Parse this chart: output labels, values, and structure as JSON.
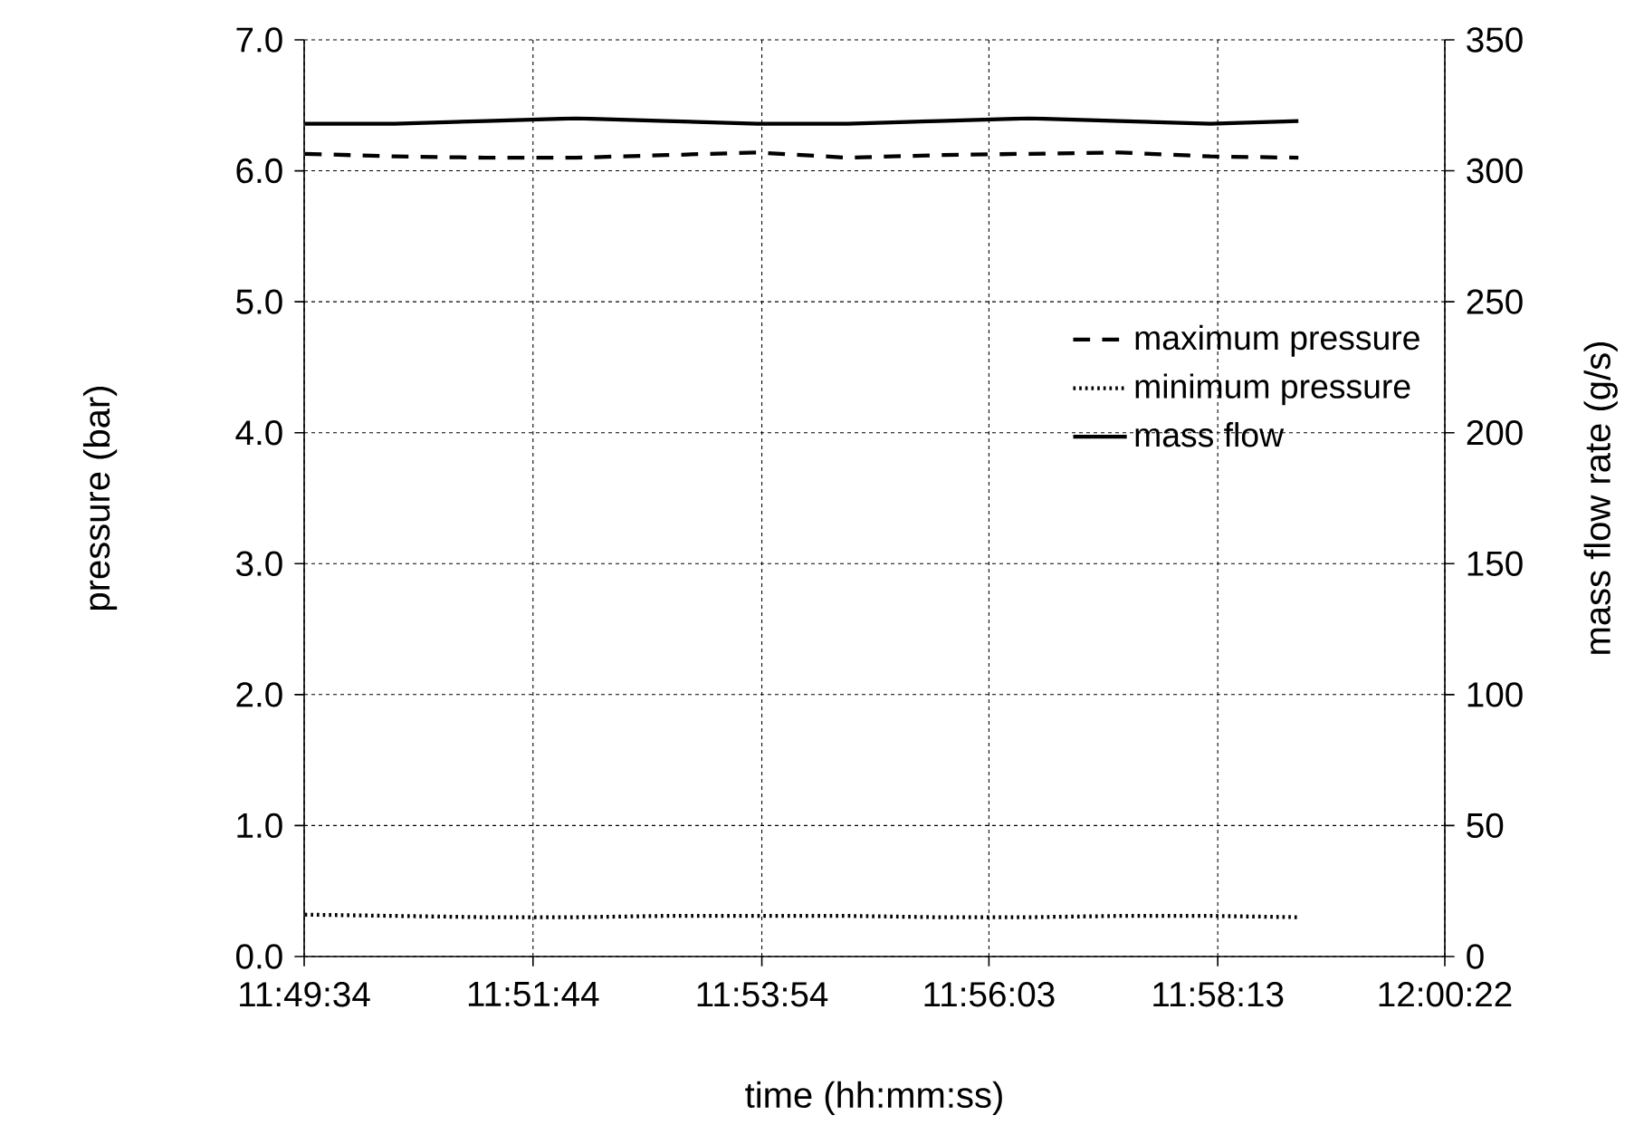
{
  "chart_data": {
    "type": "line",
    "xlabel": "time (hh:mm:ss)",
    "ylabel": "pressure (bar)",
    "y2label": "mass flow rate (g/s)",
    "xlim": [
      11.826111,
      12.006111
    ],
    "xticks": [
      {
        "value": 11.826111,
        "label": "11:49:34"
      },
      {
        "value": 11.862222,
        "label": "11:51:44"
      },
      {
        "value": 11.898333,
        "label": "11:53:54"
      },
      {
        "value": 11.934167,
        "label": "11:56:03"
      },
      {
        "value": 11.970278,
        "label": "11:58:13"
      },
      {
        "value": 12.006111,
        "label": "12:00:22"
      }
    ],
    "ylim": [
      0,
      7
    ],
    "yticks": [
      {
        "value": 0,
        "label": "0.0"
      },
      {
        "value": 1,
        "label": "1.0"
      },
      {
        "value": 2,
        "label": "2.0"
      },
      {
        "value": 3,
        "label": "3.0"
      },
      {
        "value": 4,
        "label": "4.0"
      },
      {
        "value": 5,
        "label": "5.0"
      },
      {
        "value": 6,
        "label": "6.0"
      },
      {
        "value": 7,
        "label": "7.0"
      }
    ],
    "y2lim": [
      0,
      350
    ],
    "y2ticks": [
      0,
      50,
      100,
      150,
      200,
      250,
      300,
      350
    ],
    "grid": true,
    "legend": "right",
    "series": [
      {
        "name": "maximum pressure",
        "color": "#000000",
        "line_style": "dashed",
        "x": [
          11.8262,
          11.8404,
          11.8547,
          11.869,
          11.8833,
          11.8976,
          11.9119,
          11.9262,
          11.9405,
          11.9548,
          11.9691,
          11.983
        ],
        "values": [
          6.13,
          6.11,
          6.1,
          6.1,
          6.12,
          6.14,
          6.1,
          6.12,
          6.13,
          6.14,
          6.11,
          6.1
        ]
      },
      {
        "name": "minimum pressure",
        "color": "#000000",
        "line_style": "dotted",
        "x": [
          11.8262,
          11.8404,
          11.8547,
          11.869,
          11.8833,
          11.8976,
          11.9119,
          11.9262,
          11.9405,
          11.9548,
          11.9691,
          11.983
        ],
        "values": [
          0.32,
          0.31,
          0.3,
          0.3,
          0.31,
          0.31,
          0.31,
          0.3,
          0.3,
          0.31,
          0.31,
          0.3
        ]
      },
      {
        "name": "mass flow",
        "color": "#000000",
        "line_style": "solid",
        "axis": "y2",
        "x": [
          11.8262,
          11.8404,
          11.8547,
          11.869,
          11.8833,
          11.8976,
          11.9119,
          11.9262,
          11.9405,
          11.9548,
          11.9691,
          11.983
        ],
        "values": [
          318,
          318,
          319,
          320,
          319,
          318,
          318,
          319,
          320,
          319,
          318,
          319
        ]
      }
    ]
  }
}
